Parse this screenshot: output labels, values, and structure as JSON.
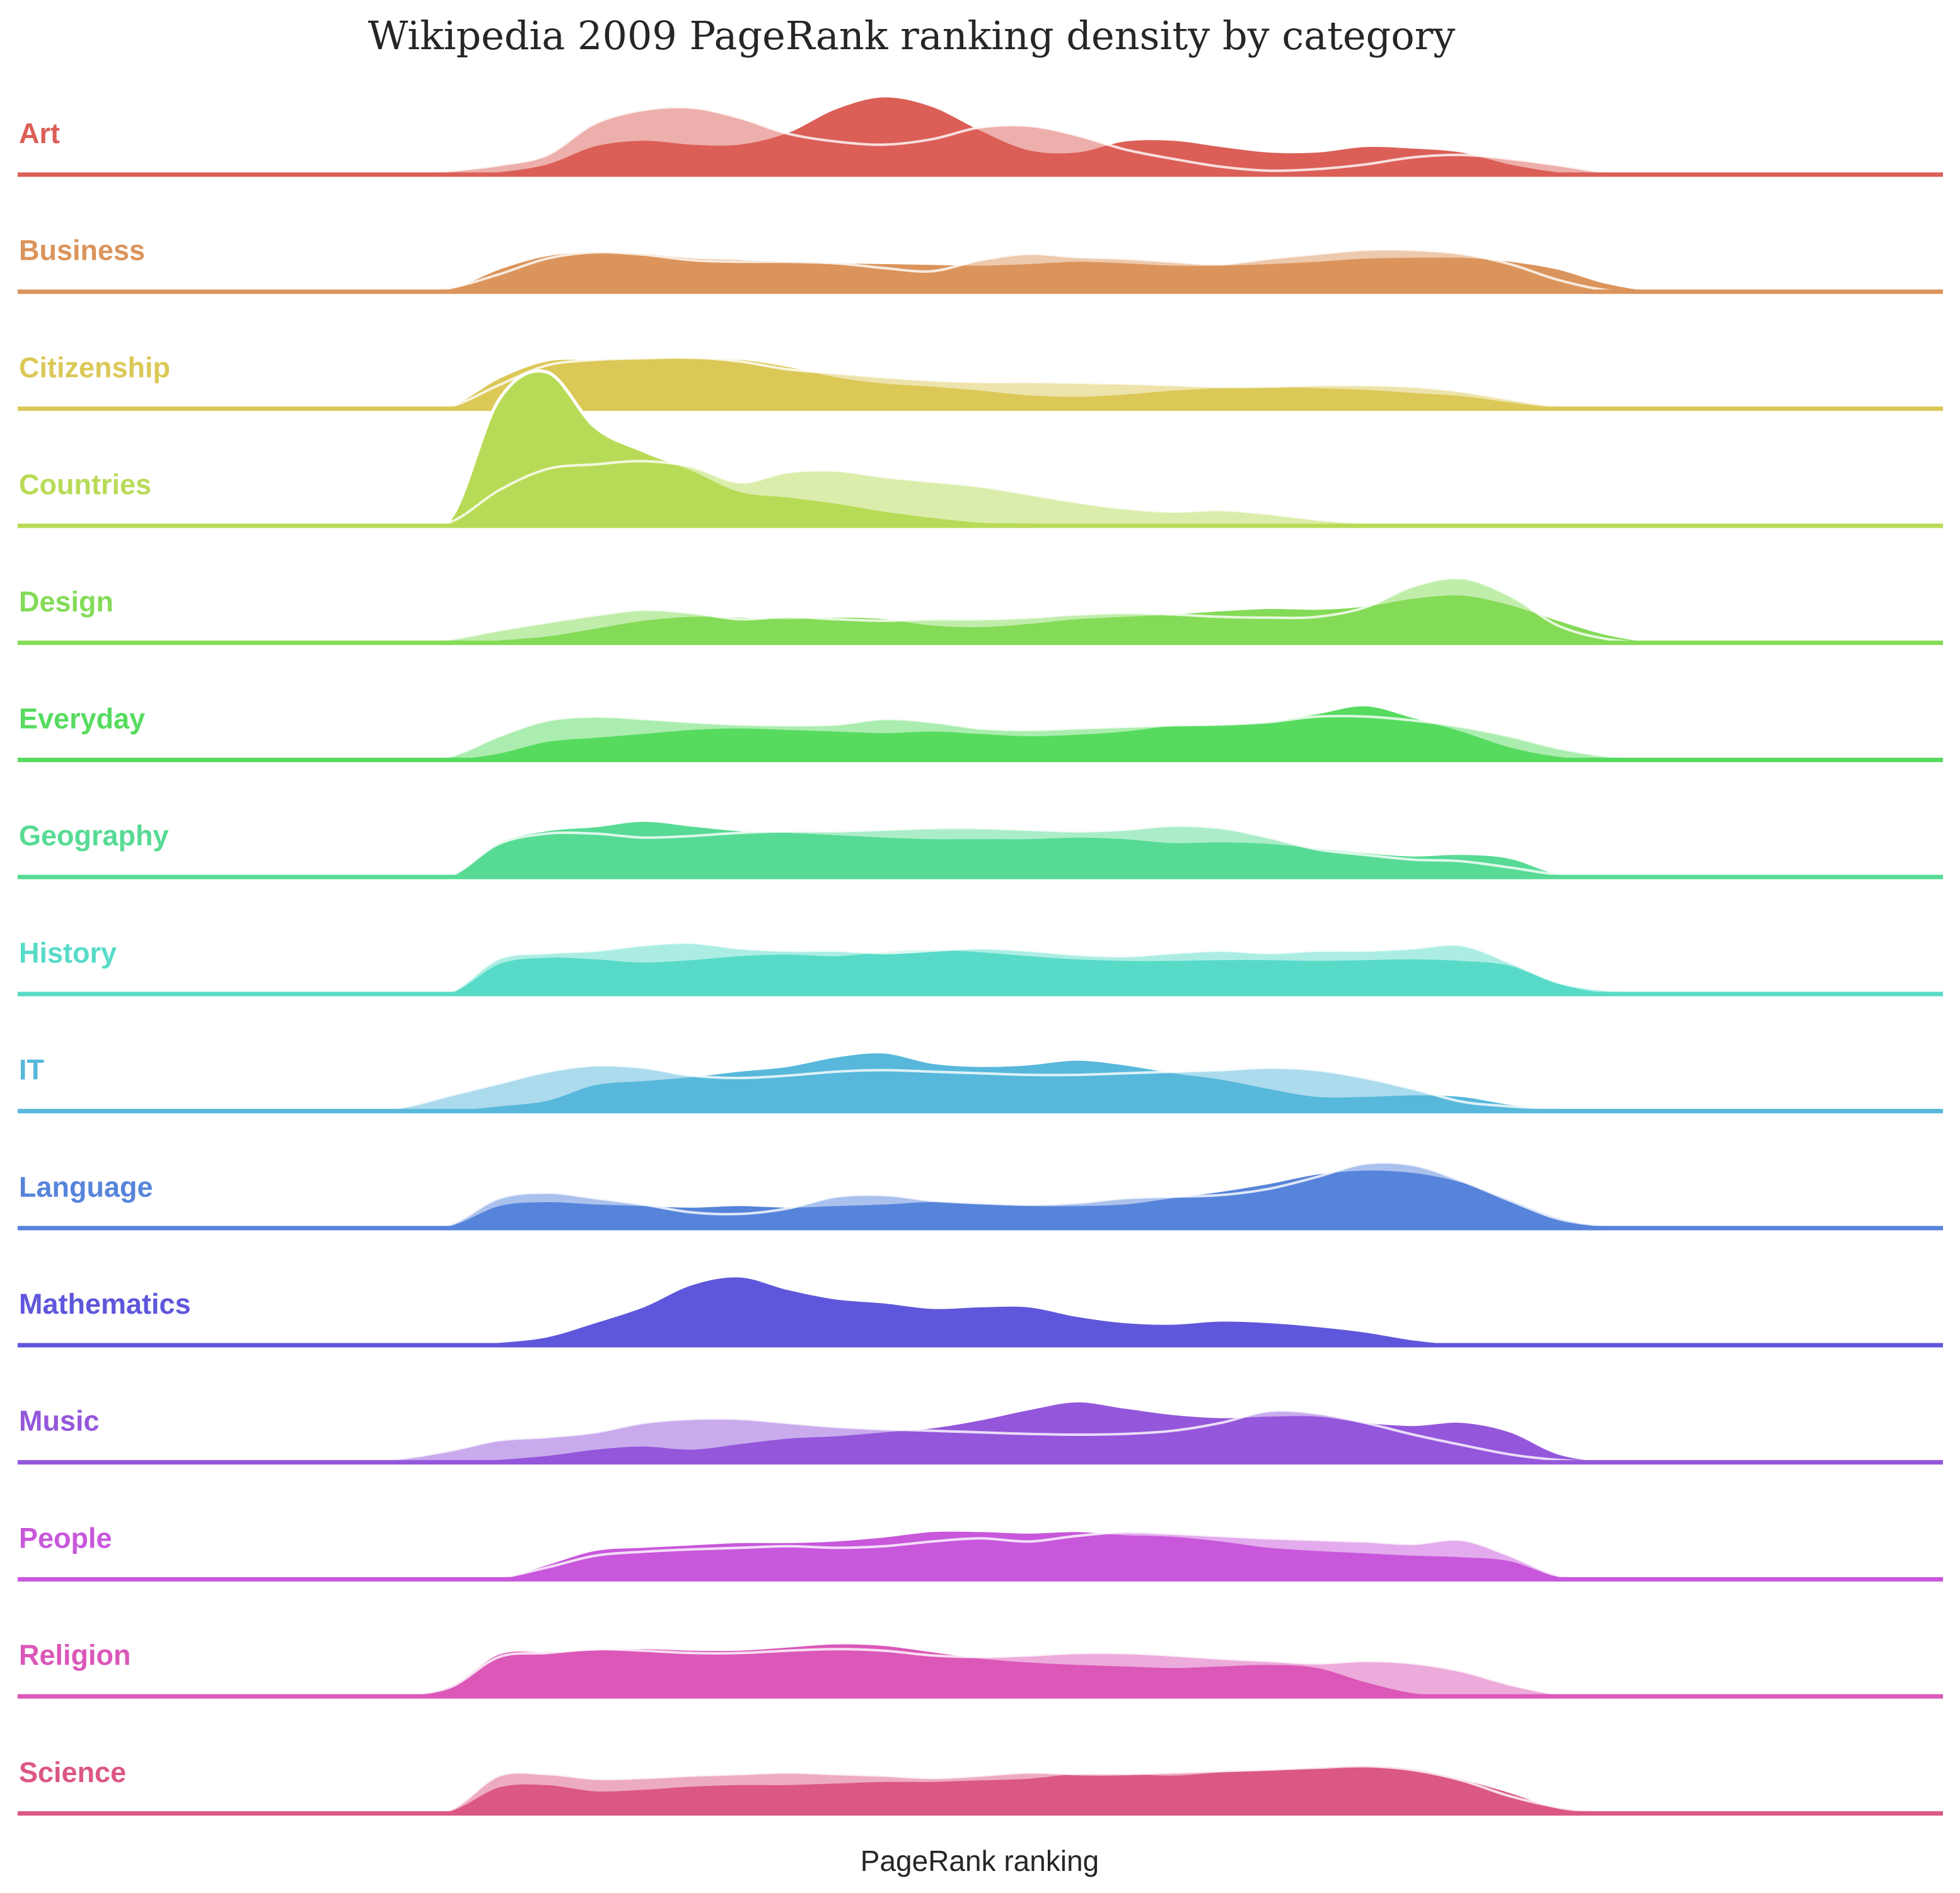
{
  "chart_data": {
    "type": "area",
    "title": "Wikipedia 2009 PageRank ranking density by category",
    "xlabel": "PageRank ranking",
    "ylabel": "",
    "grid": false,
    "legend": "none",
    "x": [
      0,
      1,
      2,
      3,
      4,
      5,
      6,
      7,
      8,
      9,
      10,
      11,
      12,
      13,
      14,
      15,
      16,
      17,
      18,
      19,
      20,
      21,
      22,
      23,
      24,
      25,
      26,
      27,
      28,
      29,
      30,
      31,
      32,
      33,
      34,
      35,
      36,
      37,
      38,
      39,
      40
    ],
    "categories": [
      {
        "name": "Art",
        "color": "#db5f57",
        "dark": [
          0,
          0,
          0,
          0,
          0,
          0,
          0,
          0,
          0,
          0.02,
          0.05,
          0.15,
          0.38,
          0.45,
          0.4,
          0.4,
          0.55,
          0.85,
          1.0,
          0.88,
          0.58,
          0.33,
          0.3,
          0.44,
          0.45,
          0.37,
          0.3,
          0.3,
          0.37,
          0.35,
          0.3,
          0.15,
          0.05,
          0.02,
          0,
          0,
          0,
          0,
          0,
          0,
          0
        ],
        "light": [
          0,
          0,
          0,
          0,
          0,
          0,
          0,
          0,
          0,
          0.05,
          0.12,
          0.25,
          0.65,
          0.82,
          0.85,
          0.72,
          0.52,
          0.42,
          0.38,
          0.45,
          0.6,
          0.62,
          0.5,
          0.32,
          0.2,
          0.1,
          0.05,
          0.07,
          0.13,
          0.22,
          0.25,
          0.2,
          0.12,
          0.03,
          0,
          0,
          0,
          0,
          0,
          0,
          0
        ]
      },
      {
        "name": "Business",
        "color": "#db945b",
        "dark": [
          0,
          0,
          0,
          0,
          0,
          0,
          0,
          0,
          0,
          0.05,
          0.3,
          0.47,
          0.52,
          0.5,
          0.44,
          0.42,
          0.4,
          0.38,
          0.37,
          0.36,
          0.35,
          0.37,
          0.4,
          0.38,
          0.35,
          0.35,
          0.37,
          0.4,
          0.44,
          0.45,
          0.45,
          0.4,
          0.3,
          0.12,
          0.02,
          0,
          0,
          0,
          0,
          0,
          0
        ],
        "light": [
          0,
          0,
          0,
          0,
          0,
          0,
          0,
          0,
          0,
          0.05,
          0.22,
          0.42,
          0.5,
          0.47,
          0.4,
          0.38,
          0.38,
          0.36,
          0.3,
          0.26,
          0.4,
          0.48,
          0.44,
          0.42,
          0.38,
          0.35,
          0.42,
          0.48,
          0.53,
          0.53,
          0.48,
          0.35,
          0.15,
          0.02,
          0,
          0,
          0,
          0,
          0,
          0,
          0
        ]
      },
      {
        "name": "Citizenship",
        "color": "#dbc857",
        "dark": [
          0,
          0,
          0,
          0,
          0,
          0,
          0,
          0,
          0,
          0.05,
          0.4,
          0.62,
          0.64,
          0.66,
          0.65,
          0.64,
          0.55,
          0.42,
          0.34,
          0.3,
          0.25,
          0.19,
          0.17,
          0.2,
          0.25,
          0.28,
          0.3,
          0.28,
          0.26,
          0.22,
          0.18,
          0.1,
          0.03,
          0,
          0,
          0,
          0,
          0,
          0,
          0,
          0
        ],
        "light": [
          0,
          0,
          0,
          0,
          0,
          0,
          0,
          0,
          0,
          0.03,
          0.3,
          0.55,
          0.62,
          0.64,
          0.65,
          0.6,
          0.5,
          0.45,
          0.4,
          0.36,
          0.34,
          0.34,
          0.33,
          0.32,
          0.3,
          0.28,
          0.28,
          0.3,
          0.3,
          0.28,
          0.22,
          0.12,
          0.03,
          0,
          0,
          0,
          0,
          0,
          0,
          0,
          0
        ]
      },
      {
        "name": "Countries",
        "color": "#b8db57",
        "dark": [
          0,
          0,
          0,
          0,
          0,
          0,
          0,
          0,
          0,
          0.1,
          1.6,
          1.95,
          1.25,
          0.95,
          0.72,
          0.45,
          0.38,
          0.3,
          0.2,
          0.12,
          0.06,
          0.05,
          0.04,
          0.04,
          0.04,
          0.04,
          0.03,
          0.02,
          0.01,
          0,
          0,
          0,
          0,
          0,
          0,
          0,
          0,
          0,
          0,
          0,
          0
        ],
        "light": [
          0,
          0,
          0,
          0,
          0,
          0,
          0,
          0,
          0,
          0.05,
          0.45,
          0.72,
          0.78,
          0.82,
          0.75,
          0.55,
          0.68,
          0.7,
          0.62,
          0.56,
          0.5,
          0.4,
          0.3,
          0.22,
          0.18,
          0.2,
          0.15,
          0.08,
          0.03,
          0,
          0,
          0,
          0,
          0,
          0,
          0,
          0,
          0,
          0,
          0,
          0
        ]
      },
      {
        "name": "Design",
        "color": "#84db57",
        "dark": [
          0,
          0,
          0,
          0,
          0,
          0,
          0,
          0,
          0,
          0,
          0.05,
          0.1,
          0.2,
          0.3,
          0.35,
          0.34,
          0.32,
          0.34,
          0.32,
          0.24,
          0.22,
          0.26,
          0.32,
          0.35,
          0.38,
          0.42,
          0.45,
          0.44,
          0.48,
          0.58,
          0.62,
          0.5,
          0.3,
          0.12,
          0.02,
          0,
          0,
          0,
          0,
          0,
          0
        ],
        "light": [
          0,
          0,
          0,
          0,
          0,
          0,
          0,
          0,
          0,
          0.05,
          0.16,
          0.26,
          0.35,
          0.42,
          0.38,
          0.3,
          0.33,
          0.3,
          0.28,
          0.3,
          0.3,
          0.32,
          0.36,
          0.38,
          0.36,
          0.33,
          0.32,
          0.33,
          0.45,
          0.72,
          0.82,
          0.6,
          0.22,
          0.05,
          0,
          0,
          0,
          0,
          0,
          0,
          0
        ]
      },
      {
        "name": "Everyday",
        "color": "#57db5f",
        "dark": [
          0,
          0,
          0,
          0,
          0,
          0,
          0,
          0,
          0,
          0.02,
          0.1,
          0.25,
          0.3,
          0.35,
          0.4,
          0.42,
          0.4,
          0.38,
          0.36,
          0.38,
          0.35,
          0.32,
          0.34,
          0.38,
          0.45,
          0.46,
          0.5,
          0.6,
          0.7,
          0.55,
          0.38,
          0.18,
          0.06,
          0.02,
          0,
          0,
          0,
          0,
          0,
          0,
          0
        ],
        "light": [
          0,
          0,
          0,
          0,
          0,
          0,
          0,
          0,
          0,
          0.05,
          0.3,
          0.5,
          0.55,
          0.52,
          0.48,
          0.45,
          0.44,
          0.45,
          0.52,
          0.48,
          0.4,
          0.38,
          0.4,
          0.42,
          0.44,
          0.45,
          0.48,
          0.55,
          0.55,
          0.5,
          0.42,
          0.3,
          0.15,
          0.05,
          0.02,
          0,
          0,
          0,
          0,
          0,
          0
        ]
      },
      {
        "name": "Geography",
        "color": "#57db94",
        "dark": [
          0,
          0,
          0,
          0,
          0,
          0,
          0,
          0,
          0,
          0.02,
          0.45,
          0.6,
          0.65,
          0.72,
          0.66,
          0.6,
          0.58,
          0.55,
          0.52,
          0.5,
          0.5,
          0.5,
          0.52,
          0.5,
          0.45,
          0.46,
          0.44,
          0.38,
          0.32,
          0.28,
          0.3,
          0.25,
          0.05,
          0,
          0,
          0,
          0,
          0,
          0,
          0,
          0
        ],
        "light": [
          0,
          0,
          0,
          0,
          0,
          0,
          0,
          0,
          0,
          0.02,
          0.42,
          0.55,
          0.55,
          0.5,
          0.52,
          0.56,
          0.58,
          0.58,
          0.6,
          0.62,
          0.62,
          0.6,
          0.58,
          0.6,
          0.65,
          0.62,
          0.5,
          0.35,
          0.28,
          0.22,
          0.2,
          0.12,
          0.03,
          0,
          0,
          0,
          0,
          0,
          0,
          0,
          0
        ]
      },
      {
        "name": "History",
        "color": "#57dbc8",
        "dark": [
          0,
          0,
          0,
          0,
          0,
          0,
          0,
          0,
          0,
          0.03,
          0.4,
          0.48,
          0.46,
          0.42,
          0.45,
          0.5,
          0.52,
          0.5,
          0.55,
          0.58,
          0.55,
          0.5,
          0.46,
          0.44,
          0.44,
          0.45,
          0.45,
          0.44,
          0.45,
          0.46,
          0.44,
          0.38,
          0.15,
          0.03,
          0,
          0,
          0,
          0,
          0,
          0,
          0
        ],
        "light": [
          0,
          0,
          0,
          0,
          0,
          0,
          0,
          0,
          0,
          0.03,
          0.45,
          0.52,
          0.55,
          0.62,
          0.65,
          0.58,
          0.55,
          0.55,
          0.52,
          0.55,
          0.58,
          0.55,
          0.5,
          0.48,
          0.52,
          0.55,
          0.52,
          0.55,
          0.55,
          0.58,
          0.62,
          0.4,
          0.15,
          0.05,
          0.02,
          0,
          0,
          0,
          0,
          0,
          0
        ]
      },
      {
        "name": "IT",
        "color": "#57b8db",
        "dark": [
          0,
          0,
          0,
          0,
          0,
          0,
          0,
          0,
          0,
          0.02,
          0.08,
          0.15,
          0.35,
          0.4,
          0.45,
          0.52,
          0.58,
          0.7,
          0.75,
          0.62,
          0.58,
          0.6,
          0.66,
          0.6,
          0.5,
          0.42,
          0.3,
          0.2,
          0.2,
          0.22,
          0.2,
          0.1,
          0.03,
          0,
          0,
          0,
          0,
          0,
          0,
          0,
          0
        ],
        "light": [
          0,
          0,
          0,
          0,
          0,
          0,
          0,
          0,
          0.05,
          0.2,
          0.35,
          0.5,
          0.58,
          0.55,
          0.45,
          0.42,
          0.45,
          0.5,
          0.52,
          0.5,
          0.48,
          0.46,
          0.46,
          0.48,
          0.5,
          0.52,
          0.55,
          0.52,
          0.42,
          0.28,
          0.12,
          0.06,
          0.03,
          0.02,
          0,
          0,
          0,
          0,
          0,
          0,
          0
        ]
      },
      {
        "name": "Language",
        "color": "#5784db",
        "dark": [
          0,
          0,
          0,
          0,
          0,
          0,
          0,
          0,
          0,
          0.05,
          0.3,
          0.35,
          0.32,
          0.3,
          0.28,
          0.3,
          0.28,
          0.3,
          0.32,
          0.35,
          0.32,
          0.3,
          0.3,
          0.32,
          0.4,
          0.48,
          0.58,
          0.7,
          0.75,
          0.72,
          0.6,
          0.38,
          0.15,
          0.03,
          0,
          0,
          0,
          0,
          0,
          0,
          0
        ],
        "light": [
          0,
          0,
          0,
          0,
          0,
          0,
          0,
          0,
          0,
          0.05,
          0.38,
          0.45,
          0.38,
          0.3,
          0.2,
          0.18,
          0.25,
          0.4,
          0.42,
          0.35,
          0.32,
          0.3,
          0.32,
          0.38,
          0.4,
          0.42,
          0.5,
          0.65,
          0.82,
          0.8,
          0.6,
          0.35,
          0.12,
          0.03,
          0,
          0,
          0,
          0,
          0,
          0,
          0
        ]
      },
      {
        "name": "Mathematics",
        "color": "#5f57db",
        "dark": [
          0,
          0,
          0,
          0,
          0,
          0,
          0,
          0,
          0,
          0.02,
          0.05,
          0.12,
          0.3,
          0.5,
          0.78,
          0.88,
          0.72,
          0.6,
          0.55,
          0.48,
          0.5,
          0.5,
          0.38,
          0.3,
          0.28,
          0.32,
          0.3,
          0.25,
          0.18,
          0.08,
          0.02,
          0,
          0,
          0,
          0,
          0,
          0,
          0,
          0,
          0,
          0
        ]
      },
      {
        "name": "Music",
        "color": "#9457db",
        "dark": [
          0,
          0,
          0,
          0,
          0,
          0,
          0,
          0,
          0,
          0.02,
          0.05,
          0.1,
          0.18,
          0.22,
          0.18,
          0.25,
          0.32,
          0.35,
          0.4,
          0.45,
          0.55,
          0.68,
          0.78,
          0.7,
          0.62,
          0.58,
          0.6,
          0.6,
          0.52,
          0.48,
          0.52,
          0.4,
          0.12,
          0.02,
          0,
          0,
          0,
          0,
          0,
          0,
          0
        ],
        "light": [
          0,
          0,
          0,
          0,
          0,
          0,
          0,
          0,
          0.05,
          0.15,
          0.28,
          0.32,
          0.38,
          0.5,
          0.55,
          0.55,
          0.5,
          0.45,
          0.42,
          0.4,
          0.38,
          0.36,
          0.35,
          0.36,
          0.4,
          0.5,
          0.65,
          0.62,
          0.5,
          0.35,
          0.22,
          0.1,
          0.03,
          0,
          0,
          0,
          0,
          0,
          0,
          0,
          0
        ]
      },
      {
        "name": "People",
        "color": "#c857db",
        "dark": [
          0,
          0,
          0,
          0,
          0,
          0,
          0,
          0,
          0,
          0,
          0.02,
          0.2,
          0.38,
          0.42,
          0.45,
          0.48,
          0.48,
          0.5,
          0.55,
          0.62,
          0.62,
          0.6,
          0.62,
          0.58,
          0.56,
          0.5,
          0.42,
          0.38,
          0.35,
          0.32,
          0.3,
          0.25,
          0.05,
          0,
          0,
          0,
          0,
          0,
          0,
          0,
          0
        ],
        "light": [
          0,
          0,
          0,
          0,
          0,
          0,
          0,
          0,
          0,
          0,
          0.02,
          0.15,
          0.3,
          0.35,
          0.38,
          0.4,
          0.42,
          0.4,
          0.42,
          0.48,
          0.52,
          0.48,
          0.55,
          0.6,
          0.58,
          0.55,
          0.52,
          0.5,
          0.48,
          0.45,
          0.5,
          0.3,
          0.05,
          0,
          0,
          0,
          0,
          0,
          0,
          0,
          0
        ]
      },
      {
        "name": "Religion",
        "color": "#db57b8",
        "dark": [
          0,
          0,
          0,
          0,
          0,
          0,
          0,
          0,
          0.02,
          0.15,
          0.55,
          0.58,
          0.6,
          0.62,
          0.6,
          0.6,
          0.64,
          0.68,
          0.66,
          0.58,
          0.5,
          0.45,
          0.42,
          0.4,
          0.38,
          0.4,
          0.42,
          0.38,
          0.2,
          0.06,
          0.02,
          0,
          0,
          0,
          0,
          0,
          0,
          0,
          0,
          0,
          0
        ],
        "light": [
          0,
          0,
          0,
          0,
          0,
          0,
          0,
          0,
          0.02,
          0.12,
          0.5,
          0.55,
          0.6,
          0.58,
          0.55,
          0.55,
          0.58,
          0.6,
          0.58,
          0.52,
          0.5,
          0.52,
          0.55,
          0.55,
          0.52,
          0.48,
          0.45,
          0.42,
          0.45,
          0.42,
          0.32,
          0.15,
          0.03,
          0,
          0,
          0,
          0,
          0,
          0,
          0,
          0
        ]
      },
      {
        "name": "Science",
        "color": "#db5784",
        "dark": [
          0,
          0,
          0,
          0,
          0,
          0,
          0,
          0,
          0,
          0.05,
          0.35,
          0.38,
          0.3,
          0.32,
          0.36,
          0.38,
          0.38,
          0.4,
          0.42,
          0.42,
          0.44,
          0.46,
          0.52,
          0.52,
          0.5,
          0.54,
          0.56,
          0.6,
          0.62,
          0.58,
          0.45,
          0.28,
          0.08,
          0.02,
          0,
          0,
          0,
          0,
          0,
          0,
          0
        ],
        "light": [
          0,
          0,
          0,
          0,
          0,
          0,
          0,
          0,
          0,
          0.05,
          0.48,
          0.5,
          0.44,
          0.45,
          0.48,
          0.5,
          0.52,
          0.5,
          0.48,
          0.45,
          0.48,
          0.52,
          0.5,
          0.5,
          0.52,
          0.54,
          0.56,
          0.58,
          0.6,
          0.55,
          0.42,
          0.22,
          0.08,
          0.02,
          0,
          0,
          0,
          0,
          0,
          0,
          0
        ]
      }
    ]
  }
}
